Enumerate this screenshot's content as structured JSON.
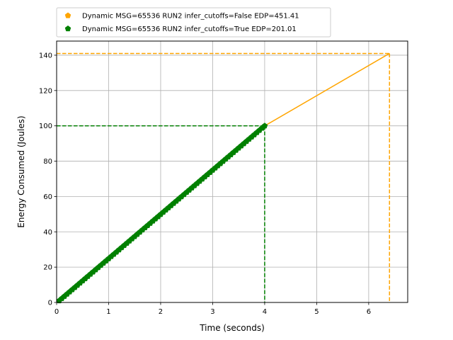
{
  "chart_data": {
    "type": "line",
    "xlabel": "Time (seconds)",
    "ylabel": "Energy Consumed (Joules)",
    "xlim": [
      0,
      6.75
    ],
    "ylim": [
      0,
      148
    ],
    "xticks": [
      "0",
      "1",
      "2",
      "3",
      "4",
      "5",
      "6"
    ],
    "yticks": [
      "0",
      "20",
      "40",
      "60",
      "80",
      "100",
      "120",
      "140"
    ],
    "grid": true,
    "legend_position": "top-left (above plot)",
    "series": [
      {
        "name": "Dynamic MSG=65536 RUN2 infer_cutoffs=False EDP=451.41",
        "color": "#ffa500",
        "marker": "pentagon",
        "x": [
          4.0,
          6.4
        ],
        "y": [
          100.0,
          141.0
        ],
        "reference_lines": {
          "x": 6.4,
          "y": 141.0
        }
      },
      {
        "name": "Dynamic MSG=65536 RUN2 infer_cutoffs=True EDP=201.01",
        "color": "#008000",
        "marker": "pentagon",
        "x": [
          0.05,
          4.0
        ],
        "y": [
          1.0,
          100.0
        ],
        "marker_count": 80,
        "reference_lines": {
          "x": 4.0,
          "y": 100.0
        }
      }
    ]
  }
}
